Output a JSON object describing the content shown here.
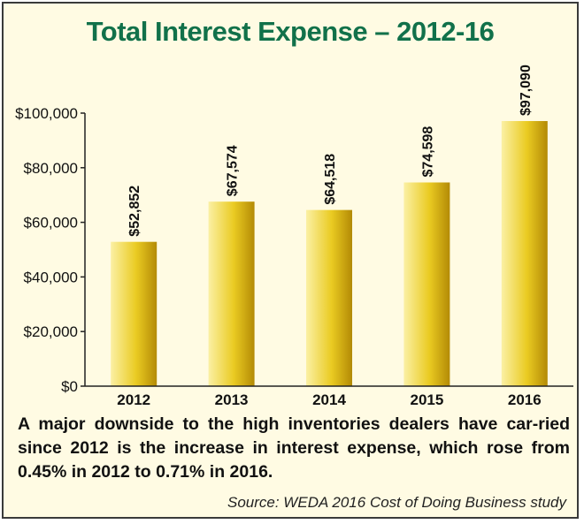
{
  "chart_data": {
    "type": "bar",
    "title": "Total Interest Expense – 2012-16",
    "categories": [
      "2012",
      "2013",
      "2014",
      "2015",
      "2016"
    ],
    "values": [
      52852,
      67574,
      64518,
      74598,
      97090
    ],
    "value_labels": [
      "$52,852",
      "$67,574",
      "$64,518",
      "$74,598",
      "$97,090"
    ],
    "ylim": [
      0,
      100000
    ],
    "yticks": [
      0,
      20000,
      40000,
      60000,
      80000,
      100000
    ],
    "ytick_labels": [
      "$0",
      "$20,000",
      "$40,000",
      "$60,000",
      "$80,000",
      "$100,000"
    ],
    "grid": false,
    "legend": "none",
    "xlabel": "",
    "ylabel": ""
  },
  "caption": "A major downside to the high inventories dealers have car-ried since 2012 is the increase in interest expense, which rose from 0.45% in 2012 to 0.71% in 2016.",
  "source": "Source: WEDA 2016 Cost of Doing Business study",
  "colors": {
    "title": "#11714a",
    "bar_light": "#fbf0a4",
    "bar_mid": "#eacb22",
    "bar_dark": "#b38a05",
    "background": "#fffbe3"
  }
}
